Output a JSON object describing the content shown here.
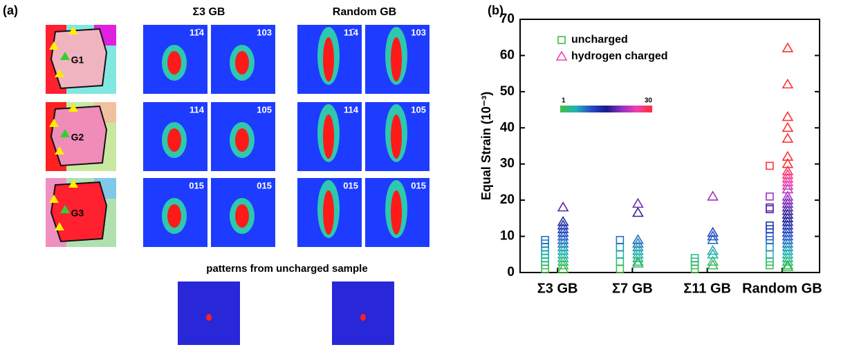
{
  "panel_a": {
    "label": "(a)",
    "columns": [
      "Σ3 GB",
      "Random GB"
    ],
    "grains": [
      "G1",
      "G2",
      "G3"
    ],
    "pattern_labels": [
      [
        "11̄4",
        "103",
        "11̄4",
        "103"
      ],
      [
        "114",
        "105",
        "114",
        "105"
      ],
      [
        "015",
        "015",
        "015",
        "015"
      ]
    ],
    "bottom_caption": "patterns from uncharged sample"
  },
  "chart_data": {
    "type": "scatter",
    "panel_label": "(b)",
    "y_label": "Equal Strain  (10⁻³)",
    "categories": [
      "Σ3 GB",
      "Σ7 GB",
      "Σ11 GB",
      "Random GB"
    ],
    "ylim": [
      0,
      70
    ],
    "yticks": [
      0,
      10,
      20,
      30,
      40,
      50,
      60,
      70
    ],
    "clim": [
      1,
      30
    ],
    "colormap": [
      "#40c040",
      "#20b4b8",
      "#2a4cc8",
      "#1a1a90",
      "#9030c0",
      "#f040b0",
      "#ff3030"
    ],
    "legend": "upper left",
    "series": [
      {
        "name": "uncharged",
        "marker": "square",
        "color": "#40c040",
        "values": [
          [
            1,
            2,
            3,
            4,
            5,
            6,
            7,
            8,
            9
          ],
          [
            1,
            3,
            5,
            7,
            9
          ],
          [
            1,
            2,
            3,
            4
          ],
          [
            2,
            3,
            5,
            7,
            9,
            10,
            12,
            13,
            17.5,
            18,
            21,
            29.5
          ]
        ]
      },
      {
        "name": "hydrogen charged",
        "marker": "triangle",
        "color": "#f040b0",
        "values": [
          [
            1,
            2,
            3,
            4,
            5,
            6,
            7,
            8,
            9,
            10,
            11,
            12,
            13,
            14,
            18
          ],
          [
            2.5,
            3,
            4,
            5,
            6,
            7,
            8,
            9,
            16.5,
            19
          ],
          [
            2,
            3,
            5,
            6,
            9,
            10,
            11,
            21
          ],
          [
            1.5,
            2,
            3,
            4,
            5,
            6,
            7,
            8,
            9,
            10,
            11,
            12,
            13,
            14,
            15,
            16,
            17,
            18,
            19,
            20,
            21,
            23,
            24,
            25,
            26,
            27,
            28,
            30,
            32,
            37,
            40,
            43,
            52,
            62
          ]
        ]
      }
    ]
  }
}
